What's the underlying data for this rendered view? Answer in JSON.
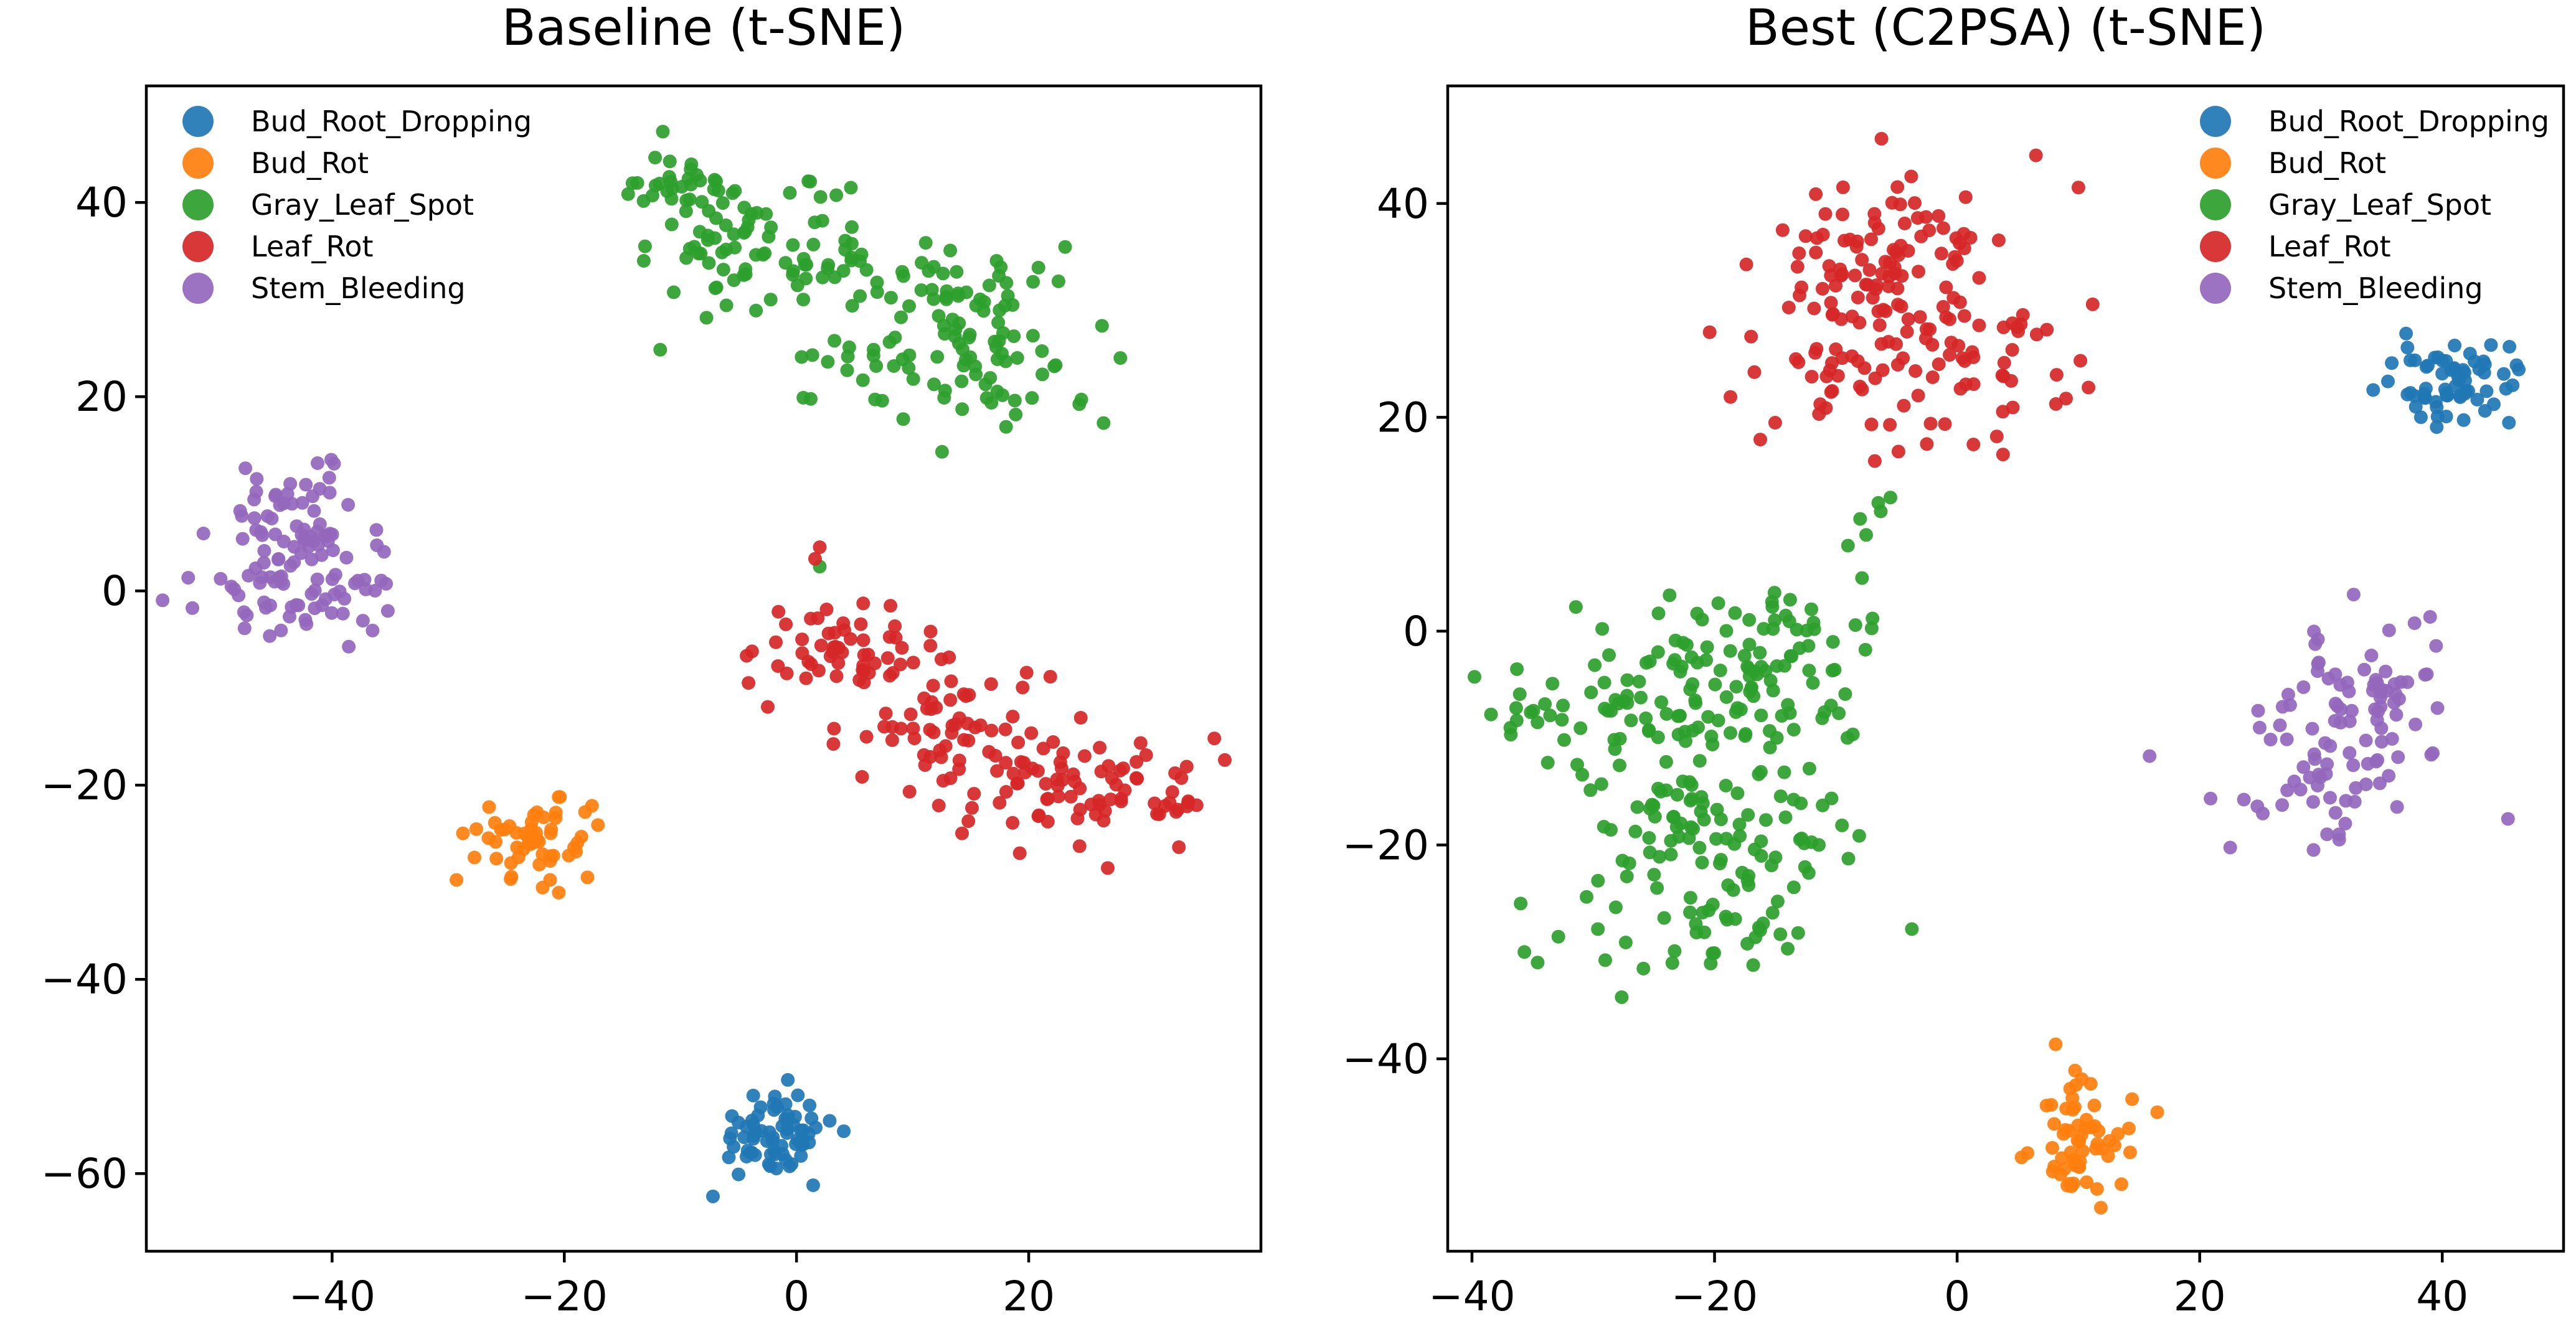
{
  "chart_data": [
    {
      "type": "scatter",
      "title": "Baseline (t-SNE)",
      "xlabel": "",
      "ylabel": "",
      "xlim": [
        -56,
        40
      ],
      "ylim": [
        -68,
        52
      ],
      "xticks": [
        -40,
        -20,
        0,
        20
      ],
      "yticks": [
        40,
        20,
        0,
        -20,
        -40,
        -60
      ],
      "grid": false,
      "legend_position": "upper-left",
      "series": [
        {
          "name": "Bud_Root_Dropping",
          "color": "#1f77b4",
          "clusters": [
            {
              "center": [
                -2,
                -56
              ],
              "spread": [
                2.6,
                2.3
              ],
              "count": 70
            }
          ]
        },
        {
          "name": "Bud_Rot",
          "color": "#ff7f0e",
          "clusters": [
            {
              "center": [
                -22,
                -25.5
              ],
              "spread": [
                2.8,
                2.1
              ],
              "count": 55
            }
          ],
          "extra_points": [
            [
              -18,
              -29.5
            ]
          ]
        },
        {
          "name": "Gray_Leaf_Spot",
          "color": "#2ca02c",
          "clusters": [
            {
              "center": [
                -10,
                41
              ],
              "spread": [
                2.8,
                2.3
              ],
              "count": 45
            },
            {
              "center": [
                -1,
                34
              ],
              "spread": [
                5.5,
                3.2
              ],
              "count": 70
            },
            {
              "center": [
                9,
                30
              ],
              "spread": [
                3.5,
                2.4
              ],
              "count": 20
            },
            {
              "center": [
                5,
                22
              ],
              "spread": [
                2.6,
                1.7
              ],
              "count": 15
            },
            {
              "center": [
                17,
                26
              ],
              "spread": [
                5,
                4.5
              ],
              "count": 80
            }
          ],
          "extra_points": [
            [
              2,
              2.5
            ]
          ]
        },
        {
          "name": "Leaf_Rot",
          "color": "#d62728",
          "clusters": [
            {
              "center": [
                4,
                -6
              ],
              "spread": [
                3.5,
                2.6
              ],
              "count": 55
            },
            {
              "center": [
                13,
                -14
              ],
              "spread": [
                4.5,
                3.2
              ],
              "count": 60
            },
            {
              "center": [
                24,
                -20
              ],
              "spread": [
                5.5,
                2.9
              ],
              "count": 75
            },
            {
              "center": [
                32,
                -22
              ],
              "spread": [
                2.3,
                1
              ],
              "count": 8
            }
          ],
          "extra_points": [
            [
              2,
              4.5
            ],
            [
              1.6,
              3.3
            ]
          ]
        },
        {
          "name": "Stem_Bleeding",
          "color": "#9467bd",
          "clusters": [
            {
              "center": [
                -43,
                7.5
              ],
              "spread": [
                3.2,
                3
              ],
              "count": 55
            },
            {
              "center": [
                -43,
                0
              ],
              "spread": [
                4.5,
                2.8
              ],
              "count": 65
            }
          ]
        }
      ]
    },
    {
      "type": "scatter",
      "title": "Best (C2PSA) (t-SNE)",
      "xlabel": "",
      "ylabel": "",
      "xlim": [
        -42,
        50
      ],
      "ylim": [
        -58,
        51
      ],
      "xticks": [
        -40,
        -20,
        0,
        20,
        40
      ],
      "yticks": [
        40,
        20,
        0,
        -20,
        -40
      ],
      "grid": false,
      "legend_position": "upper-right",
      "series": [
        {
          "name": "Bud_Root_Dropping",
          "color": "#1f77b4",
          "clusters": [
            {
              "center": [
                41,
                23.5
              ],
              "spread": [
                2.3,
                1.9
              ],
              "count": 65
            }
          ],
          "extra_points": [
            [
              45.5,
              19.5
            ],
            [
              45.8,
              23
            ]
          ]
        },
        {
          "name": "Bud_Rot",
          "color": "#ff7f0e",
          "clusters": [
            {
              "center": [
                10,
                -47.5
              ],
              "spread": [
                1.8,
                2.8
              ],
              "count": 60
            }
          ],
          "extra_points": [
            [
              16.5,
              -45
            ]
          ]
        },
        {
          "name": "Gray_Leaf_Spot",
          "color": "#2ca02c",
          "clusters": [
            {
              "center": [
                -22,
                -6
              ],
              "spread": [
                7,
                4.5
              ],
              "count": 130
            },
            {
              "center": [
                -20,
                -18
              ],
              "spread": [
                5.5,
                3.2
              ],
              "count": 70
            },
            {
              "center": [
                -21,
                -27
              ],
              "spread": [
                5.5,
                2.6
              ],
              "count": 50
            },
            {
              "center": [
                -14,
                -1
              ],
              "spread": [
                3.2,
                2.6
              ],
              "count": 30
            },
            {
              "center": [
                -35,
                -9
              ],
              "spread": [
                1.8,
                1.2
              ],
              "count": 10
            }
          ],
          "extra_points": [
            [
              -8,
              10.5
            ],
            [
              -6.5,
              12
            ],
            [
              -7.5,
              9
            ],
            [
              -9,
              8
            ],
            [
              -5.5,
              12.5
            ],
            [
              -6.3,
              11.2
            ]
          ]
        },
        {
          "name": "Leaf_Rot",
          "color": "#d62728",
          "clusters": [
            {
              "center": [
                -4,
                35
              ],
              "spread": [
                4.5,
                4.5
              ],
              "count": 70
            },
            {
              "center": [
                -3,
                25
              ],
              "spread": [
                7,
                4.5
              ],
              "count": 90
            },
            {
              "center": [
                -10,
                33
              ],
              "spread": [
                2.5,
                4
              ],
              "count": 25
            }
          ],
          "extra_points": [
            [
              -15,
              19.5
            ],
            [
              -2.5,
              17.5
            ],
            [
              6.5,
              44.5
            ],
            [
              10,
              41.5
            ]
          ]
        },
        {
          "name": "Stem_Bleeding",
          "color": "#9467bd",
          "clusters": [
            {
              "center": [
                33,
                -5
              ],
              "spread": [
                3.5,
                2.6
              ],
              "count": 50
            },
            {
              "center": [
                31,
                -12
              ],
              "spread": [
                4.5,
                4
              ],
              "count": 55
            }
          ],
          "extra_points": [
            [
              31.5,
              -19.5
            ],
            [
              30.5,
              -19
            ],
            [
              32,
              -18
            ]
          ]
        }
      ]
    }
  ]
}
